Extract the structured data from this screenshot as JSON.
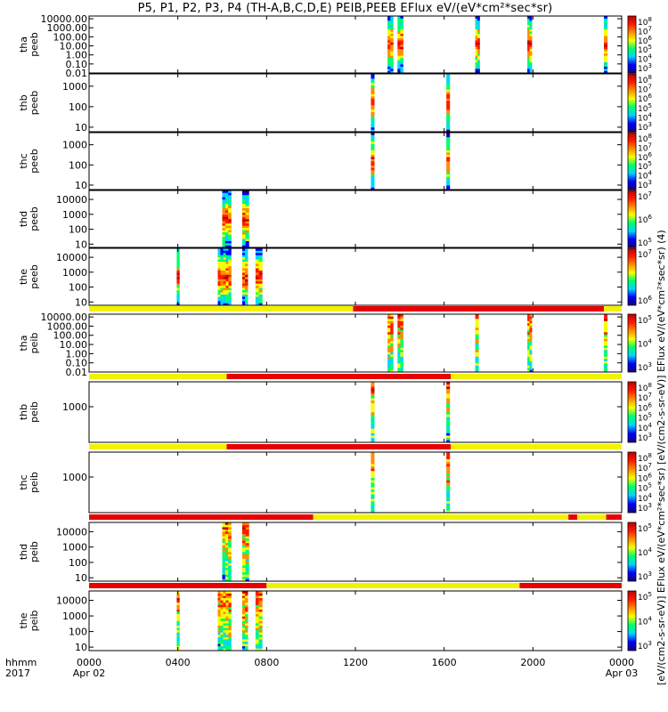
{
  "header": {
    "title": "P5, P1, P2, P3, P4 (TH-A,B,C,D,E) PEIB,PEEB EFlux eV/(eV*cm²*sec*sr)",
    "colorbar_label": "[eV/(cm2-s-sr-eV)] EFlux eV/(eV*cm²*sec*sr) [eV/(cm2-s-sr-eV)] EFlux eV/(eV*cm²*sec*sr) (4)",
    "time_row1": "hhmm",
    "time_row2": "2017"
  },
  "colors": {
    "mode_yellow": "#f2f200",
    "mode_red": "#e60000",
    "background": "#ffffff",
    "spectrogram_palette": [
      "#1a007a",
      "#0000ff",
      "#00d5ff",
      "#00ff6a",
      "#f6ff00",
      "#ff8c00",
      "#ff1a00",
      "#c00000"
    ]
  },
  "chart_data": {
    "type": "heatmap",
    "x_ticks": [
      "0000\nApr 02",
      "0400",
      "0800",
      "1200",
      "1600",
      "2000",
      "0000\nApr 03"
    ],
    "x_range_hours": [
      0,
      24
    ],
    "panels": [
      {
        "label": "tha\npeeb",
        "yticks": [
          "10000.00",
          "1000.00",
          "100.00",
          "10.00",
          "1.00",
          "0.10",
          "0.01"
        ],
        "ylog": [
          0.01,
          20000
        ],
        "cbar_ticks": [
          "10^8",
          "10^7",
          "10^6",
          "10^5",
          "10^4",
          "10^3"
        ],
        "mode_bar": [],
        "intervals": [
          {
            "start": 13.45,
            "end": 13.7
          },
          {
            "start": 13.9,
            "end": 14.15
          },
          {
            "start": 17.4,
            "end": 17.6
          },
          {
            "start": 19.75,
            "end": 19.95
          },
          {
            "start": 23.2,
            "end": 23.35
          }
        ]
      },
      {
        "label": "thb\npeeb",
        "yticks": [
          "1000",
          "100",
          "10"
        ],
        "ylog": [
          6,
          4000
        ],
        "cbar_ticks": [
          "10^8",
          "10^7",
          "10^6",
          "10^5",
          "10^4",
          "10^3"
        ],
        "mode_bar": [],
        "intervals": [
          {
            "start": 12.7,
            "end": 12.85
          },
          {
            "start": 16.1,
            "end": 16.25
          }
        ]
      },
      {
        "label": "thc\npeeb",
        "yticks": [
          "1000",
          "100",
          "10"
        ],
        "ylog": [
          6,
          4000
        ],
        "cbar_ticks": [
          "10^8",
          "10^7",
          "10^6",
          "10^5",
          "10^4",
          "10^3"
        ],
        "mode_bar": [],
        "intervals": [
          {
            "start": 12.7,
            "end": 12.85
          },
          {
            "start": 16.1,
            "end": 16.25
          }
        ]
      },
      {
        "label": "thd\npeeb",
        "yticks": [
          "10000",
          "1000",
          "100",
          "10"
        ],
        "ylog": [
          6,
          40000
        ],
        "cbar_ticks": [
          "10^7",
          "10^6",
          "10^5"
        ],
        "mode_bar": [],
        "intervals": [
          {
            "start": 6.0,
            "end": 6.4
          },
          {
            "start": 6.9,
            "end": 7.2
          }
        ]
      },
      {
        "label": "the\npeeb",
        "yticks": [
          "10000",
          "1000",
          "100",
          "10"
        ],
        "ylog": [
          6,
          40000
        ],
        "cbar_ticks": [
          "10^7",
          "10^6"
        ],
        "mode_bar": [],
        "intervals": [
          {
            "start": 3.95,
            "end": 4.05
          },
          {
            "start": 5.8,
            "end": 6.4
          },
          {
            "start": 6.9,
            "end": 7.15
          },
          {
            "start": 7.5,
            "end": 7.8
          }
        ]
      },
      {
        "label": "tha\npeib",
        "yticks": [
          "10000.00",
          "1000.00",
          "100.00",
          "10.00",
          "1.00",
          "0.10",
          "0.01"
        ],
        "ylog": [
          0.01,
          20000
        ],
        "cbar_ticks": [
          "10^5",
          "10^4",
          "10^3"
        ],
        "mode_bar": [
          {
            "start": 0,
            "end": 11.9,
            "mode": "yellow"
          },
          {
            "start": 11.9,
            "end": 23.2,
            "mode": "red"
          },
          {
            "start": 23.2,
            "end": 24,
            "mode": "yellow"
          }
        ],
        "intervals": [
          {
            "start": 13.45,
            "end": 13.7
          },
          {
            "start": 13.9,
            "end": 14.15
          },
          {
            "start": 17.4,
            "end": 17.55
          },
          {
            "start": 19.75,
            "end": 19.95
          },
          {
            "start": 23.2,
            "end": 23.35
          }
        ]
      },
      {
        "label": "thb\npeib",
        "yticks": [
          "1000"
        ],
        "ylog": [
          100,
          5000
        ],
        "cbar_ticks": [
          "10^8",
          "10^7",
          "10^6",
          "10^5",
          "10^4",
          "10^3"
        ],
        "mode_bar": [
          {
            "start": 0,
            "end": 6.2,
            "mode": "yellow"
          },
          {
            "start": 6.2,
            "end": 16.3,
            "mode": "red"
          },
          {
            "start": 16.3,
            "end": 24,
            "mode": "yellow"
          }
        ],
        "intervals": [
          {
            "start": 12.7,
            "end": 12.85
          },
          {
            "start": 16.1,
            "end": 16.25
          }
        ]
      },
      {
        "label": "thc\npeib",
        "yticks": [
          "1000"
        ],
        "ylog": [
          100,
          5000
        ],
        "cbar_ticks": [
          "10^8",
          "10^7",
          "10^6",
          "10^5",
          "10^4",
          "10^3"
        ],
        "mode_bar": [
          {
            "start": 0,
            "end": 6.2,
            "mode": "yellow"
          },
          {
            "start": 6.2,
            "end": 16.3,
            "mode": "red"
          },
          {
            "start": 16.3,
            "end": 24,
            "mode": "yellow"
          }
        ],
        "intervals": [
          {
            "start": 12.7,
            "end": 12.85
          },
          {
            "start": 16.1,
            "end": 16.25
          }
        ]
      },
      {
        "label": "thd\npeib",
        "yticks": [
          "10000",
          "1000",
          "100",
          "10"
        ],
        "ylog": [
          6,
          40000
        ],
        "cbar_ticks": [
          "10^5",
          "10^4",
          "10^3"
        ],
        "mode_bar": [
          {
            "start": 0,
            "end": 10.1,
            "mode": "red"
          },
          {
            "start": 10.1,
            "end": 21.6,
            "mode": "yellow"
          },
          {
            "start": 21.6,
            "end": 22.0,
            "mode": "red"
          },
          {
            "start": 22.0,
            "end": 23.3,
            "mode": "yellow"
          },
          {
            "start": 23.3,
            "end": 24,
            "mode": "red"
          }
        ],
        "intervals": [
          {
            "start": 6.0,
            "end": 6.4
          },
          {
            "start": 6.9,
            "end": 7.2
          }
        ]
      },
      {
        "label": "the\npeib",
        "yticks": [
          "10000",
          "1000",
          "100",
          "10"
        ],
        "ylog": [
          6,
          40000
        ],
        "cbar_ticks": [
          "10^5",
          "10^4",
          "10^3"
        ],
        "mode_bar": [
          {
            "start": 0,
            "end": 8.0,
            "mode": "red"
          },
          {
            "start": 8.0,
            "end": 19.4,
            "mode": "yellow"
          },
          {
            "start": 19.4,
            "end": 24,
            "mode": "red"
          }
        ],
        "intervals": [
          {
            "start": 3.95,
            "end": 4.05
          },
          {
            "start": 5.8,
            "end": 6.4
          },
          {
            "start": 6.9,
            "end": 7.15
          },
          {
            "start": 7.5,
            "end": 7.8
          }
        ]
      }
    ]
  }
}
